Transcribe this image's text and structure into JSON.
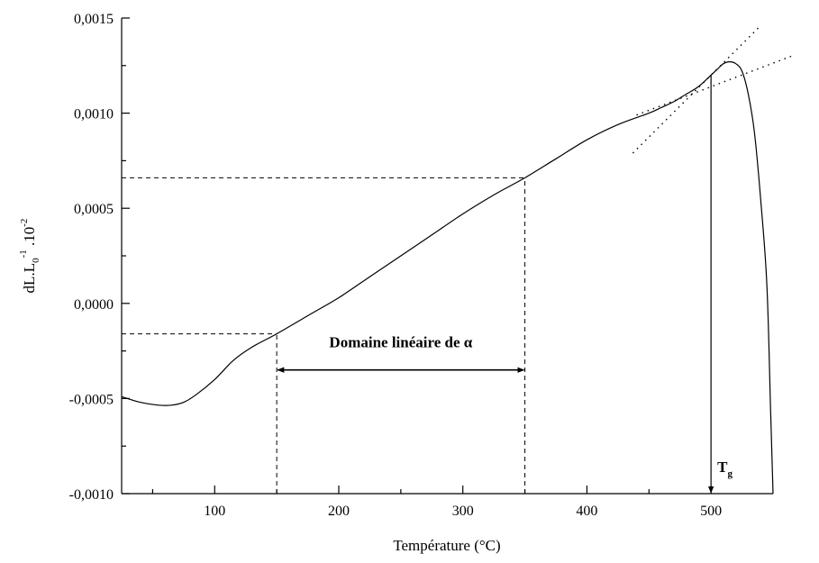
{
  "chart_data": {
    "type": "line",
    "xlabel": "Température (°C)",
    "ylabel": "dL.L0-1.10-2",
    "ylabel_parts": {
      "base1": "dL.L",
      "sub": "0",
      "sup1": "-1",
      "base2": " .10",
      "sup2": "-2"
    },
    "xlim": [
      25,
      550
    ],
    "ylim": [
      -0.001,
      0.0015
    ],
    "x_ticks": [
      {
        "value": 100,
        "label": "100"
      },
      {
        "value": 200,
        "label": "200"
      },
      {
        "value": 300,
        "label": "300"
      },
      {
        "value": 400,
        "label": "400"
      },
      {
        "value": 500,
        "label": "500"
      }
    ],
    "x_minor_ticks": [
      50,
      150,
      250,
      350,
      450
    ],
    "y_ticks": [
      {
        "value": -0.001,
        "label": "-0,0010"
      },
      {
        "value": -0.0005,
        "label": "-0,0005"
      },
      {
        "value": 0.0,
        "label": "0,0000"
      },
      {
        "value": 0.0005,
        "label": "0,0005"
      },
      {
        "value": 0.001,
        "label": "0,0010"
      },
      {
        "value": 0.0015,
        "label": "0,0015"
      }
    ],
    "y_minor_ticks": [
      -0.00075,
      -0.00025,
      0.00025,
      0.00075,
      0.00125
    ],
    "series": [
      {
        "x": [
          25,
          40,
          55,
          65,
          75,
          85,
          100,
          115,
          130,
          150,
          175,
          200,
          225,
          250,
          275,
          300,
          325,
          350,
          375,
          400,
          425,
          450,
          460,
          470,
          480,
          490,
          500,
          505,
          510,
          515,
          520,
          525,
          530,
          535,
          540,
          545,
          548,
          550
        ],
        "y": [
          -0.00049,
          -0.00052,
          -0.000535,
          -0.000535,
          -0.00052,
          -0.00048,
          -0.0004,
          -0.0003,
          -0.00023,
          -0.00016,
          -6.5e-05,
          3e-05,
          0.00014,
          0.00025,
          0.00036,
          0.00047,
          0.00057,
          0.00066,
          0.00076,
          0.00086,
          0.00094,
          0.001,
          0.00103,
          0.00106,
          0.0011,
          0.00114,
          0.0012,
          0.00123,
          0.00126,
          0.00127,
          0.00126,
          0.00122,
          0.0011,
          0.0009,
          0.00055,
          0.0001,
          -0.00055,
          -0.001
        ]
      }
    ],
    "reference_lines": [
      {
        "style": "dashed",
        "x": [
          25,
          150
        ],
        "y": [
          -0.00016,
          -0.00016
        ]
      },
      {
        "style": "dashed",
        "x": [
          150,
          150
        ],
        "y": [
          -0.001,
          -0.00016
        ]
      },
      {
        "style": "dashed",
        "x": [
          25,
          350
        ],
        "y": [
          0.00066,
          0.00066
        ]
      },
      {
        "style": "dashed",
        "x": [
          350,
          350
        ],
        "y": [
          -0.001,
          0.00066
        ]
      }
    ],
    "tangent_lines": [
      {
        "style": "dotted",
        "x": [
          440,
          565
        ],
        "y": [
          0.00099,
          0.0013
        ]
      },
      {
        "style": "dotted",
        "x": [
          437,
          540
        ],
        "y": [
          0.00079,
          0.00146
        ]
      }
    ],
    "annotations": [
      {
        "text": "Domaine linéaire de α",
        "type": "double-arrow",
        "x": [
          150,
          350
        ],
        "y": -0.00035,
        "text_y": -0.00023
      },
      {
        "text": "T",
        "sub": "g",
        "type": "arrow-down",
        "x": 500,
        "y_from": 0.0012,
        "y_to": -0.001
      }
    ]
  }
}
